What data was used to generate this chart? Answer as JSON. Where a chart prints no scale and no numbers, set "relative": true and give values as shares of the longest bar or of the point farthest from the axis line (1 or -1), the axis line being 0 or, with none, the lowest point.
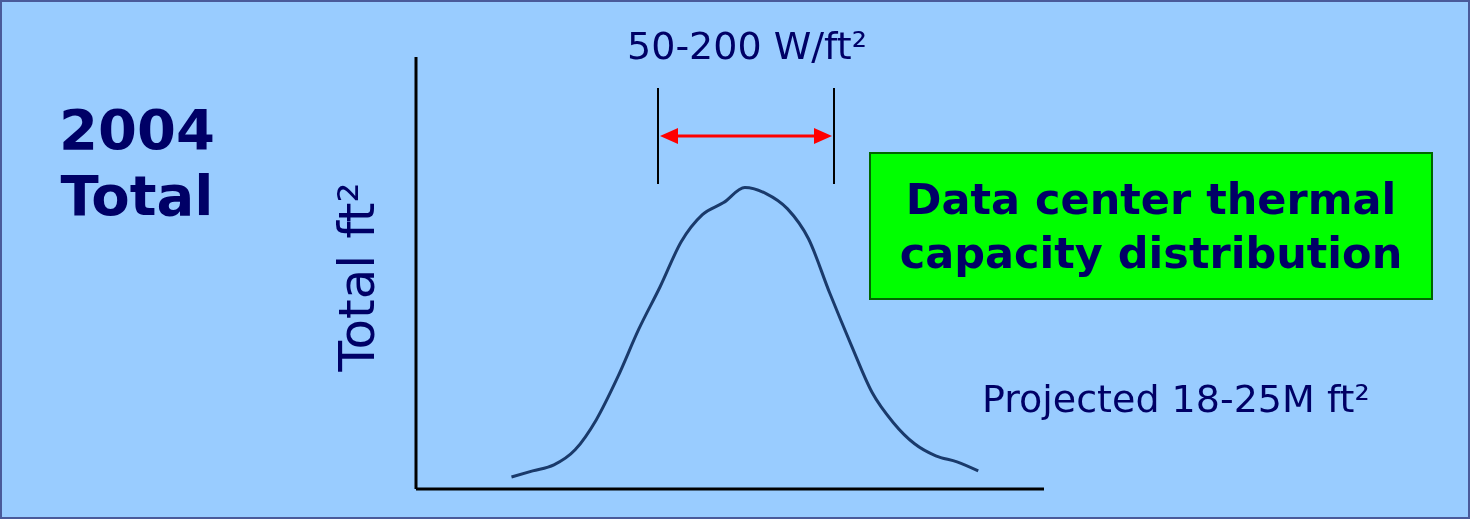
{
  "chart_data": {
    "type": "line",
    "title": "Data center thermal capacity distribution",
    "ylabel": "Total ft²",
    "relative": true,
    "annotations": [
      "2004 Total",
      "50-200 W/ft²",
      "Projected 18-25M ft²"
    ],
    "categories": [
      null,
      null,
      null,
      null,
      null,
      null,
      null,
      null,
      null,
      null,
      null,
      null,
      null,
      null,
      null,
      null,
      null,
      null,
      null,
      null,
      null,
      null,
      null
    ],
    "series": [
      {
        "color": "#1a3a6b",
        "values": [
          0.04,
          0.06,
          0.08,
          0.13,
          0.23,
          0.37,
          0.53,
          0.67,
          0.82,
          0.91,
          0.95,
          1.0,
          0.98,
          0.93,
          0.83,
          0.65,
          0.48,
          0.32,
          0.22,
          0.15,
          0.11,
          0.09,
          0.06
        ]
      }
    ],
    "grid": false,
    "legend": false,
    "marker": "none",
    "line_style": "solid"
  }
}
